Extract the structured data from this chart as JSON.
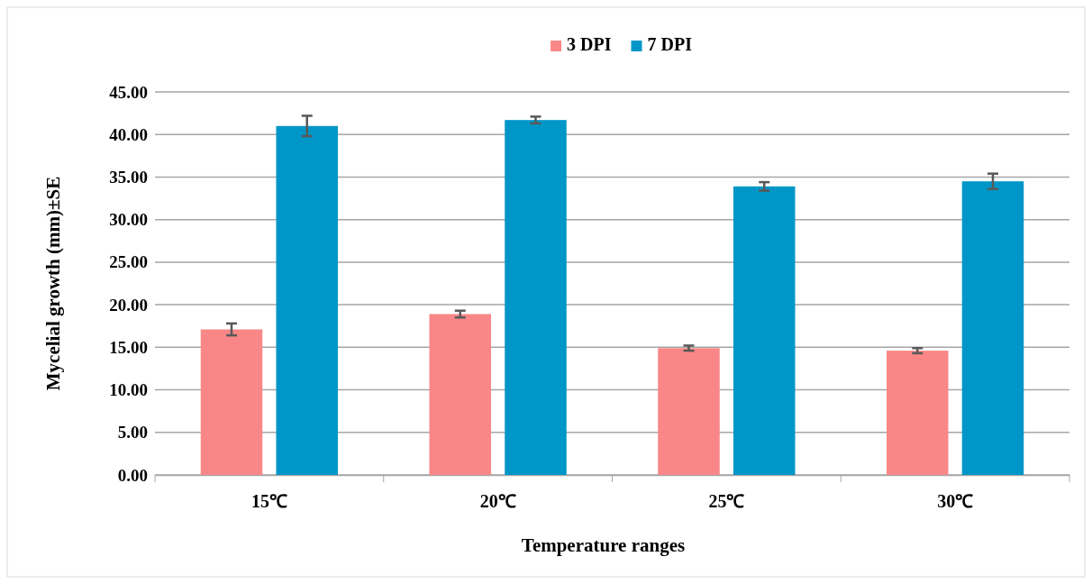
{
  "chart_data": {
    "type": "bar",
    "xlabel": "Temperature ranges",
    "ylabel": "Mycelial growth (mm)±SE",
    "categories": [
      "15℃",
      "20℃",
      "25℃",
      "30℃"
    ],
    "series": [
      {
        "name": "3 DPI",
        "color": "#fa8787",
        "values": [
          17.1,
          18.9,
          14.9,
          14.6
        ],
        "errors": [
          0.7,
          0.4,
          0.3,
          0.3
        ]
      },
      {
        "name": "7 DPI",
        "color": "#0096c8",
        "values": [
          41.0,
          41.7,
          33.9,
          34.5
        ],
        "errors": [
          1.2,
          0.4,
          0.5,
          0.9
        ]
      }
    ],
    "ylim": [
      0,
      45
    ],
    "yticks": [
      {
        "value": 0,
        "label": "0.00"
      },
      {
        "value": 5,
        "label": "5.00"
      },
      {
        "value": 10,
        "label": "10.00"
      },
      {
        "value": 15,
        "label": "15.00"
      },
      {
        "value": 20,
        "label": "20.00"
      },
      {
        "value": 25,
        "label": "25.00"
      },
      {
        "value": 30,
        "label": "30.00"
      },
      {
        "value": 35,
        "label": "35.00"
      },
      {
        "value": 40,
        "label": "40.00"
      },
      {
        "value": 45,
        "label": "45.00"
      }
    ],
    "grid": "y",
    "legend": "top"
  }
}
